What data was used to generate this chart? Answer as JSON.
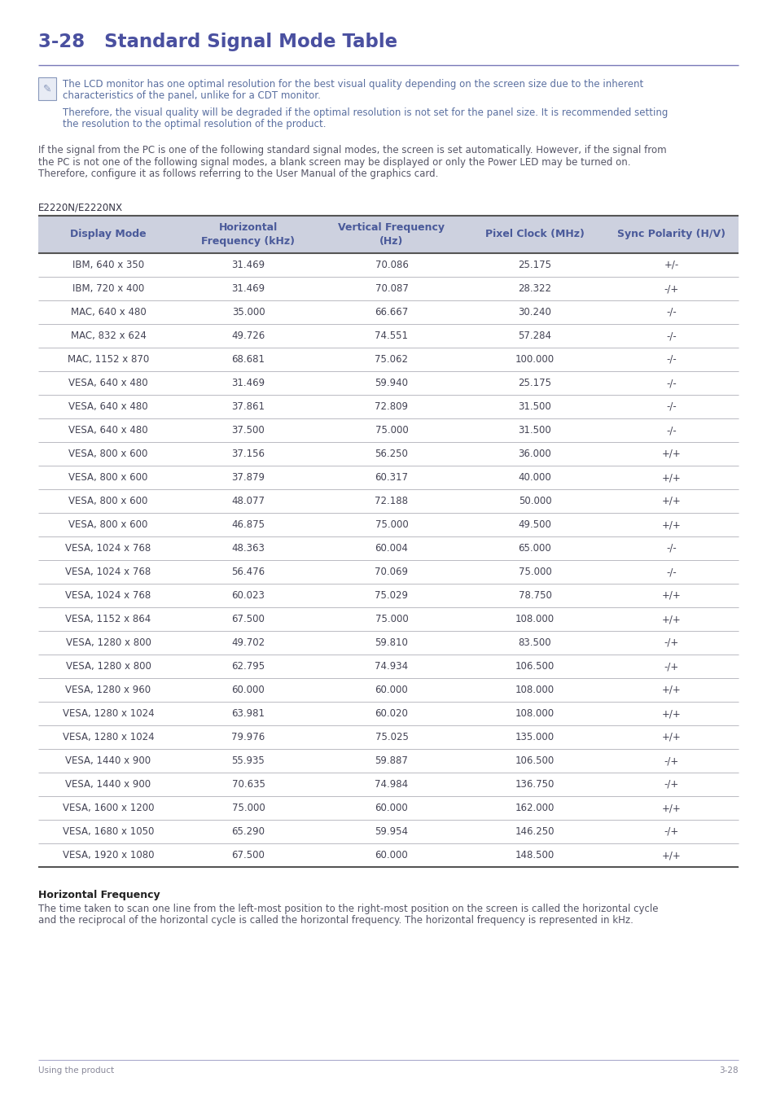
{
  "title": "3-28   Standard Signal Mode Table",
  "note_text_color": "#5a6fa0",
  "note_icon_color": "#8898bb",
  "note_line1": "The LCD monitor has one optimal resolution for the best visual quality depending on the screen size due to the inherent",
  "note_line2": "characteristics of the panel, unlike for a CDT monitor.",
  "note_line3": "Therefore, the visual quality will be degraded if the optimal resolution is not set for the panel size. It is recommended setting",
  "note_line4": "the resolution to the optimal resolution of the product.",
  "body_text_line1": "If the signal from the PC is one of the following standard signal modes, the screen is set automatically. However, if the signal from",
  "body_text_line2": "the PC is not one of the following signal modes, a blank screen may be displayed or only the Power LED may be turned on.",
  "body_text_line3": "Therefore, configure it as follows referring to the User Manual of the graphics card.",
  "body_text_color": "#555566",
  "model_label": "E2220N/E2220NX",
  "model_label_color": "#333344",
  "table_header_bg": "#cdd1df",
  "table_header_text_color": "#4a5a9a",
  "table_row_bg": "#ffffff",
  "table_text_color": "#444455",
  "col_headers": [
    "Display Mode",
    "Horizontal\nFrequency (kHz)",
    "Vertical Frequency\n(Hz)",
    "Pixel Clock (MHz)",
    "Sync Polarity (H/V)"
  ],
  "rows": [
    [
      "IBM, 640 x 350",
      "31.469",
      "70.086",
      "25.175",
      "+/-"
    ],
    [
      "IBM, 720 x 400",
      "31.469",
      "70.087",
      "28.322",
      "-/+"
    ],
    [
      "MAC, 640 x 480",
      "35.000",
      "66.667",
      "30.240",
      "-/-"
    ],
    [
      "MAC, 832 x 624",
      "49.726",
      "74.551",
      "57.284",
      "-/-"
    ],
    [
      "MAC, 1152 x 870",
      "68.681",
      "75.062",
      "100.000",
      "-/-"
    ],
    [
      "VESA, 640 x 480",
      "31.469",
      "59.940",
      "25.175",
      "-/-"
    ],
    [
      "VESA, 640 x 480",
      "37.861",
      "72.809",
      "31.500",
      "-/-"
    ],
    [
      "VESA, 640 x 480",
      "37.500",
      "75.000",
      "31.500",
      "-/-"
    ],
    [
      "VESA, 800 x 600",
      "37.156",
      "56.250",
      "36.000",
      "+/+"
    ],
    [
      "VESA, 800 x 600",
      "37.879",
      "60.317",
      "40.000",
      "+/+"
    ],
    [
      "VESA, 800 x 600",
      "48.077",
      "72.188",
      "50.000",
      "+/+"
    ],
    [
      "VESA, 800 x 600",
      "46.875",
      "75.000",
      "49.500",
      "+/+"
    ],
    [
      "VESA, 1024 x 768",
      "48.363",
      "60.004",
      "65.000",
      "-/-"
    ],
    [
      "VESA, 1024 x 768",
      "56.476",
      "70.069",
      "75.000",
      "-/-"
    ],
    [
      "VESA, 1024 x 768",
      "60.023",
      "75.029",
      "78.750",
      "+/+"
    ],
    [
      "VESA, 1152 x 864",
      "67.500",
      "75.000",
      "108.000",
      "+/+"
    ],
    [
      "VESA, 1280 x 800",
      "49.702",
      "59.810",
      "83.500",
      "-/+"
    ],
    [
      "VESA, 1280 x 800",
      "62.795",
      "74.934",
      "106.500",
      "-/+"
    ],
    [
      "VESA, 1280 x 960",
      "60.000",
      "60.000",
      "108.000",
      "+/+"
    ],
    [
      "VESA, 1280 x 1024",
      "63.981",
      "60.020",
      "108.000",
      "+/+"
    ],
    [
      "VESA, 1280 x 1024",
      "79.976",
      "75.025",
      "135.000",
      "+/+"
    ],
    [
      "VESA, 1440 x 900",
      "55.935",
      "59.887",
      "106.500",
      "-/+"
    ],
    [
      "VESA, 1440 x 900",
      "70.635",
      "74.984",
      "136.750",
      "-/+"
    ],
    [
      "VESA, 1600 x 1200",
      "75.000",
      "60.000",
      "162.000",
      "+/+"
    ],
    [
      "VESA, 1680 x 1050",
      "65.290",
      "59.954",
      "146.250",
      "-/+"
    ],
    [
      "VESA, 1920 x 1080",
      "67.500",
      "60.000",
      "148.500",
      "+/+"
    ]
  ],
  "footer_title": "Horizontal Frequency",
  "footer_title_color": "#222222",
  "footer_text_line1": "The time taken to scan one line from the left-most position to the right-most position on the screen is called the horizontal cycle",
  "footer_text_line2": "and the reciprocal of the horizontal cycle is called the horizontal frequency. The horizontal frequency is represented in kHz.",
  "footer_text_color": "#555566",
  "bottom_left": "Using the product",
  "bottom_right": "3-28",
  "bottom_color": "#888899",
  "title_color": "#4a50a0",
  "title_line_color": "#7878b8",
  "page_bg": "#ffffff"
}
